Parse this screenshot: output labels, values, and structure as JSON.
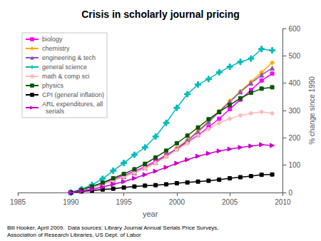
{
  "chart_data": {
    "type": "line",
    "title": "Crisis in scholarly journal pricing",
    "xlabel": "year",
    "ylabel": "% change since 1990",
    "annotations": [
      "Bill Hooker, April 2009.  Data sources: Library Journal Annual Serials Price Surveys,\nAssociation of Research Libraries, US Dept. of Labor"
    ],
    "x": [
      1990,
      1991,
      1992,
      1993,
      1994,
      1995,
      1996,
      1997,
      1998,
      1999,
      2000,
      2001,
      2002,
      2003,
      2004,
      2005,
      2006,
      2007,
      2008,
      2009
    ],
    "series": [
      {
        "name": "biology",
        "color": "#ff00ff",
        "marker": "square",
        "values": [
          0,
          10,
          22,
          35,
          48,
          62,
          78,
          95,
          115,
          137,
          160,
          185,
          210,
          240,
          270,
          305,
          340,
          375,
          410,
          435
        ]
      },
      {
        "name": "chemistry",
        "color": "#ffaa00",
        "marker": "diamond",
        "values": [
          0,
          8,
          18,
          30,
          44,
          58,
          72,
          90,
          110,
          135,
          162,
          192,
          225,
          262,
          298,
          335,
          370,
          405,
          440,
          475
        ]
      },
      {
        "name": "engineering & tech",
        "color": "#8855bb",
        "marker": "triangle",
        "values": [
          0,
          8,
          18,
          30,
          44,
          58,
          72,
          90,
          110,
          135,
          160,
          190,
          222,
          258,
          295,
          332,
          368,
          400,
          430,
          455
        ]
      },
      {
        "name": "general science",
        "color": "#00bbbb",
        "marker": "plus",
        "values": [
          0,
          12,
          28,
          50,
          80,
          108,
          138,
          165,
          205,
          255,
          310,
          360,
          395,
          415,
          440,
          460,
          478,
          490,
          525,
          520
        ]
      },
      {
        "name": "math & comp sci",
        "color": "#ffbbbb",
        "marker": "circle",
        "values": [
          0,
          8,
          18,
          30,
          44,
          58,
          72,
          88,
          108,
          130,
          155,
          180,
          208,
          232,
          255,
          270,
          282,
          290,
          295,
          290
        ]
      },
      {
        "name": "physics",
        "color": "#005500",
        "marker": "square",
        "values": [
          0,
          10,
          22,
          36,
          52,
          68,
          85,
          105,
          128,
          153,
          180,
          208,
          238,
          268,
          295,
          320,
          345,
          365,
          380,
          385
        ]
      },
      {
        "name": "CPI (general inflation)",
        "color": "#000000",
        "marker": "square",
        "values": [
          0,
          4,
          7,
          11,
          14,
          18,
          22,
          25,
          27,
          30,
          34,
          37,
          40,
          43,
          47,
          52,
          56,
          60,
          65,
          66
        ]
      },
      {
        "name": "ARL expenditures, all\n  serials",
        "color": "#cc00cc",
        "marker": "triangle-right",
        "values": [
          0,
          5,
          12,
          20,
          30,
          40,
          52,
          65,
          78,
          92,
          107,
          120,
          133,
          143,
          152,
          159,
          165,
          170,
          175,
          172
        ]
      }
    ],
    "xlim": [
      1985,
      2010
    ],
    "xticks": [
      1985,
      1990,
      1995,
      2000,
      2005,
      2010
    ],
    "ylim": [
      0,
      600
    ],
    "yticks": [
      0,
      100,
      200,
      300,
      400,
      500,
      600
    ],
    "grid": false,
    "legend": "upper left"
  }
}
